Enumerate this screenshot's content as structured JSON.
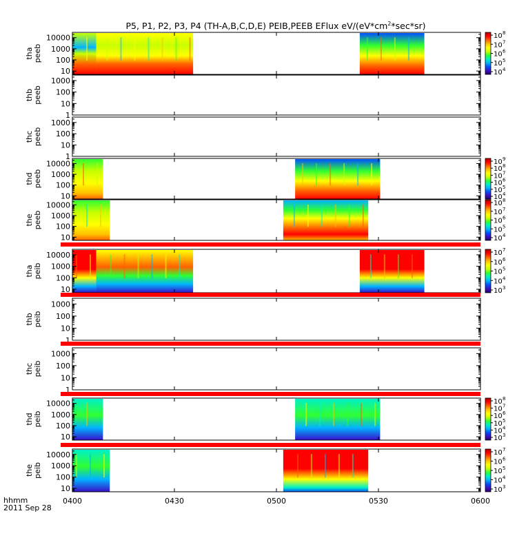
{
  "chart_data": {
    "type": "heatmap",
    "title": "P5, P1, P2, P3, P4 (TH-A,B,C,D,E) PEIB,PEEB EFlux eV/(eV*cm",
    "title_sup": "2",
    "title_end": "*sec*sr)",
    "xlabel": "hhmm",
    "date_label": "2011 Sep 28",
    "x_ticks": [
      "0400",
      "0430",
      "0500",
      "0530",
      "0600"
    ],
    "panels": [
      {
        "name": "tha peeb",
        "label": "tha",
        "sublabel": "peeb",
        "y_ticks": [
          "10000",
          "1000",
          "100",
          "10"
        ],
        "yrange": [
          5,
          30000
        ],
        "quality_bar": false,
        "colorbar": {
          "ticks": [
            "10",
            "10",
            "10",
            "10",
            "10"
          ],
          "exps": [
            "8",
            "7",
            "6",
            "5",
            "4"
          ]
        },
        "segments": [
          {
            "start": 0.0,
            "end": 7.0,
            "style": "A"
          },
          {
            "start": 7.0,
            "end": 35.5,
            "style": "B"
          },
          {
            "start": 84.5,
            "end": 103.5,
            "style": "C"
          }
        ]
      },
      {
        "name": "thb peeb",
        "label": "thb",
        "sublabel": "peeb",
        "y_ticks": [
          "1000",
          "100",
          "10",
          "1"
        ],
        "yrange": [
          1,
          3000
        ],
        "quality_bar": false,
        "segments": []
      },
      {
        "name": "thc peeb",
        "label": "thc",
        "sublabel": "peeb",
        "y_ticks": [
          "1000",
          "100",
          "10",
          "1"
        ],
        "yrange": [
          1,
          3000
        ],
        "quality_bar": false,
        "segments": []
      },
      {
        "name": "thd peeb",
        "label": "thd",
        "sublabel": "peeb",
        "y_ticks": [
          "10000",
          "1000",
          "100",
          "10"
        ],
        "yrange": [
          5,
          30000
        ],
        "quality_bar": false,
        "colorbar": {
          "ticks": [
            "10",
            "10",
            "10",
            "10",
            "10",
            "10"
          ],
          "exps": [
            "9",
            "8",
            "7",
            "6",
            "5",
            "4"
          ]
        },
        "segments": [
          {
            "start": 0.0,
            "end": 9.0,
            "style": "D"
          },
          {
            "start": 65.5,
            "end": 90.5,
            "style": "C"
          }
        ]
      },
      {
        "name": "the peeb",
        "label": "the",
        "sublabel": "peeb",
        "y_ticks": [
          "10000",
          "1000",
          "100",
          "10"
        ],
        "yrange": [
          5,
          30000
        ],
        "quality_bar": false,
        "colorbar": {
          "ticks": [
            "10",
            "10",
            "10",
            "10",
            "10"
          ],
          "exps": [
            "8",
            "7",
            "6",
            "5",
            "4"
          ]
        },
        "segments": [
          {
            "start": 0.0,
            "end": 11.0,
            "style": "D"
          },
          {
            "start": 62.0,
            "end": 87.0,
            "style": "E"
          }
        ]
      },
      {
        "name": "tha peib",
        "label": "tha",
        "sublabel": "peib",
        "y_ticks": [
          "10000",
          "1000",
          "100",
          "10"
        ],
        "yrange": [
          5,
          30000
        ],
        "quality_bar": true,
        "colorbar": {
          "ticks": [
            "10",
            "10",
            "10",
            "10",
            "10"
          ],
          "exps": [
            "7",
            "6",
            "5",
            "4",
            "3"
          ]
        },
        "segments": [
          {
            "start": 0.0,
            "end": 7.0,
            "style": "F"
          },
          {
            "start": 7.0,
            "end": 35.5,
            "style": "G"
          },
          {
            "start": 84.5,
            "end": 103.5,
            "style": "F"
          }
        ]
      },
      {
        "name": "thb peib",
        "label": "thb",
        "sublabel": "peib",
        "y_ticks": [
          "1000",
          "100",
          "10",
          "1"
        ],
        "yrange": [
          1,
          3000
        ],
        "quality_bar": true,
        "segments": []
      },
      {
        "name": "thc peib",
        "label": "thc",
        "sublabel": "peib",
        "y_ticks": [
          "1000",
          "100",
          "10",
          "1"
        ],
        "yrange": [
          1,
          3000
        ],
        "quality_bar": true,
        "segments": []
      },
      {
        "name": "thd peib",
        "label": "thd",
        "sublabel": "peib",
        "y_ticks": [
          "10000",
          "1000",
          "100",
          "10"
        ],
        "yrange": [
          5,
          30000
        ],
        "quality_bar": true,
        "colorbar": {
          "ticks": [
            "10",
            "10",
            "10",
            "10",
            "10",
            "10"
          ],
          "exps": [
            "8",
            "7",
            "6",
            "5",
            "4",
            "3"
          ]
        },
        "segments": [
          {
            "start": 0.0,
            "end": 9.0,
            "style": "H"
          },
          {
            "start": 65.5,
            "end": 90.5,
            "style": "H"
          }
        ]
      },
      {
        "name": "the peib",
        "label": "the",
        "sublabel": "peib",
        "y_ticks": [
          "10000",
          "1000",
          "100",
          "10"
        ],
        "yrange": [
          5,
          30000
        ],
        "quality_bar": true,
        "colorbar": {
          "ticks": [
            "10",
            "10",
            "10",
            "10",
            "10"
          ],
          "exps": [
            "7",
            "6",
            "5",
            "4",
            "3"
          ]
        },
        "segments": [
          {
            "start": 0.0,
            "end": 11.0,
            "style": "H"
          },
          {
            "start": 62.0,
            "end": 87.0,
            "style": "I"
          }
        ]
      }
    ],
    "xrange_minutes": [
      0,
      120
    ],
    "colormap": [
      "#2b0068",
      "#3a10c8",
      "#0050ff",
      "#00b4ff",
      "#00f0c8",
      "#30ff30",
      "#c8ff00",
      "#ffff00",
      "#ffc000",
      "#ff6000",
      "#ff0000",
      "#b00000"
    ],
    "quality_bar_color": "#ff0000"
  }
}
